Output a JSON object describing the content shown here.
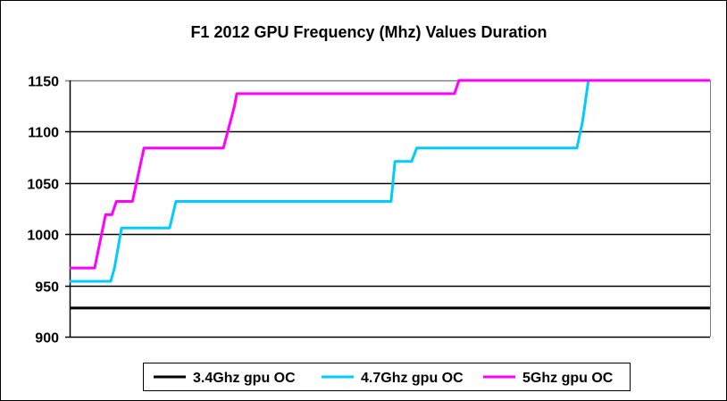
{
  "chart_data": {
    "type": "line",
    "title": "F1 2012 GPU Frequency (Mhz) Values Duration",
    "xlabel": "",
    "ylabel": "",
    "xlim": [
      0,
      100
    ],
    "ylim": [
      900,
      1150
    ],
    "yticks": [
      "900",
      "950",
      "1000",
      "1050",
      "1100",
      "1150"
    ],
    "grid": true,
    "legend_position": "bottom",
    "series": [
      {
        "name": "3.4Ghz gpu OC",
        "color": "#000000",
        "points": [
          [
            0,
            928
          ],
          [
            100,
            928
          ]
        ]
      },
      {
        "name": "4.7Ghz gpu OC",
        "color": "#00CCFF",
        "points": [
          [
            0,
            954
          ],
          [
            6.4,
            954
          ],
          [
            7.0,
            967
          ],
          [
            8.1,
            1006
          ],
          [
            15.6,
            1006
          ],
          [
            16.6,
            1032
          ],
          [
            50.2,
            1032
          ],
          [
            50.8,
            1071
          ],
          [
            53.4,
            1071
          ],
          [
            54.2,
            1084
          ],
          [
            79.2,
            1084
          ],
          [
            80.1,
            1110
          ],
          [
            81.0,
            1150
          ],
          [
            100,
            1150
          ]
        ]
      },
      {
        "name": "5Ghz gpu OC",
        "color": "#FF00FF",
        "points": [
          [
            0,
            967
          ],
          [
            3.9,
            967
          ],
          [
            5.6,
            1019
          ],
          [
            6.6,
            1019
          ],
          [
            7.3,
            1032
          ],
          [
            9.8,
            1032
          ],
          [
            11.6,
            1084
          ],
          [
            24.0,
            1084
          ],
          [
            25.7,
            1124
          ],
          [
            26.1,
            1137
          ],
          [
            60.1,
            1137
          ],
          [
            60.8,
            1150
          ],
          [
            100,
            1150
          ]
        ]
      }
    ]
  }
}
